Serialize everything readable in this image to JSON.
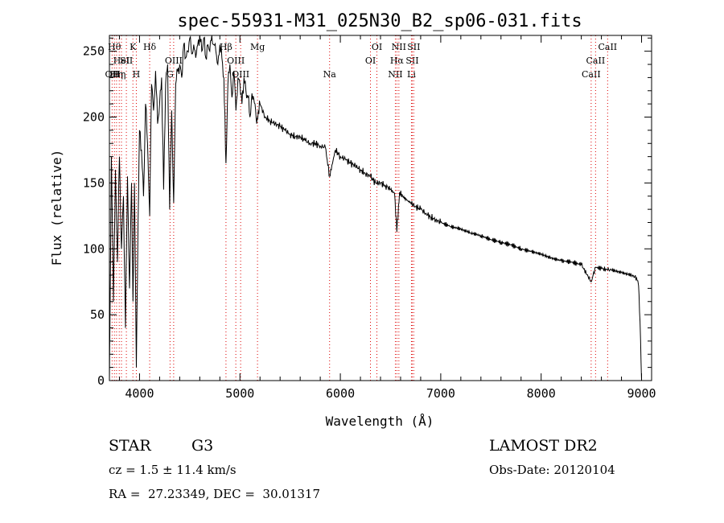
{
  "chart_data": {
    "type": "line",
    "title": "spec-55931-M31_025N30_B2_sp06-031.fits",
    "xlabel": "Wavelength (Å)",
    "ylabel": "Flux (relative)",
    "xlim": [
      3700,
      9100
    ],
    "ylim": [
      0,
      262
    ],
    "xticks": [
      4000,
      5000,
      6000,
      7000,
      8000,
      9000
    ],
    "yticks": [
      0,
      50,
      100,
      150,
      200,
      250
    ],
    "grid": false,
    "line_color": "#000000",
    "marker_color": "#dd0000",
    "series": [
      {
        "x": [
          3700,
          3720,
          3740,
          3760,
          3780,
          3800,
          3820,
          3840,
          3860,
          3880,
          3900,
          3920,
          3935,
          3950,
          3968,
          3985,
          4000,
          4020,
          4040,
          4060,
          4080,
          4101,
          4120,
          4140,
          4160,
          4180,
          4200,
          4220,
          4240,
          4260,
          4280,
          4300,
          4320,
          4340,
          4360,
          4380,
          4400,
          4420,
          4440,
          4460,
          4480,
          4500,
          4520,
          4540,
          4560,
          4580,
          4600,
          4620,
          4640,
          4660,
          4680,
          4700,
          4720,
          4740,
          4760,
          4780,
          4800,
          4820,
          4840,
          4861,
          4880,
          4900,
          4920,
          4940,
          4960,
          4980,
          5000,
          5020,
          5040,
          5060,
          5080,
          5100,
          5120,
          5150,
          5167,
          5183,
          5200,
          5250,
          5300,
          5350,
          5400,
          5450,
          5500,
          5550,
          5600,
          5650,
          5700,
          5750,
          5800,
          5850,
          5893,
          5950,
          6000,
          6050,
          6100,
          6150,
          6200,
          6250,
          6300,
          6350,
          6400,
          6450,
          6500,
          6540,
          6563,
          6590,
          6620,
          6660,
          6700,
          6750,
          6800,
          6850,
          6900,
          6950,
          7000,
          7100,
          7200,
          7300,
          7400,
          7500,
          7600,
          7700,
          7800,
          7900,
          8000,
          8100,
          8200,
          8300,
          8400,
          8498,
          8542,
          8600,
          8662,
          8700,
          8800,
          8900,
          8950,
          8970,
          8985,
          9000
        ],
        "y": [
          0,
          170,
          60,
          160,
          90,
          170,
          100,
          140,
          40,
          155,
          70,
          150,
          60,
          150,
          10,
          120,
          190,
          175,
          140,
          210,
          180,
          125,
          225,
          205,
          235,
          195,
          210,
          230,
          145,
          225,
          240,
          130,
          205,
          135,
          225,
          235,
          240,
          230,
          255,
          245,
          250,
          260,
          248,
          255,
          245,
          255,
          262,
          250,
          260,
          245,
          255,
          250,
          262,
          255,
          250,
          240,
          255,
          245,
          230,
          165,
          225,
          240,
          215,
          235,
          205,
          230,
          225,
          210,
          230,
          220,
          215,
          200,
          218,
          210,
          195,
          205,
          210,
          200,
          197,
          195,
          193,
          190,
          187,
          185,
          185,
          182,
          180,
          180,
          178,
          177,
          155,
          175,
          170,
          168,
          165,
          163,
          160,
          157,
          155,
          150,
          150,
          148,
          145,
          142,
          113,
          143,
          140,
          137,
          135,
          132,
          130,
          127,
          124,
          122,
          120,
          117,
          115,
          112,
          110,
          107,
          105,
          103,
          100,
          98,
          96,
          93,
          91,
          90,
          88,
          75,
          86,
          85,
          84,
          84,
          82,
          80,
          78,
          72,
          45,
          0
        ]
      }
    ],
    "line_markers": [
      {
        "x": 3727,
        "label": "OII",
        "row": 2
      },
      {
        "x": 3750,
        "label": "Hθ",
        "row": 0
      },
      {
        "x": 3771,
        "label": "Hη",
        "row": 2
      },
      {
        "x": 3798,
        "label": "Hη",
        "row": 2
      },
      {
        "x": 3820,
        "label": "HeI",
        "row": 1
      },
      {
        "x": 3869,
        "label": "SII",
        "row": 1
      },
      {
        "x": 3934,
        "label": "K",
        "row": 0
      },
      {
        "x": 3968,
        "label": "H",
        "row": 2
      },
      {
        "x": 4101,
        "label": "Hδ",
        "row": 0
      },
      {
        "x": 4304,
        "label": "G",
        "row": 2
      },
      {
        "x": 4340,
        "label": "OIII",
        "row": 1
      },
      {
        "x": 4861,
        "label": "Hβ",
        "row": 0
      },
      {
        "x": 4959,
        "label": "OIII",
        "row": 1
      },
      {
        "x": 5007,
        "label": "OIII",
        "row": 2
      },
      {
        "x": 5175,
        "label": "Mg",
        "row": 0
      },
      {
        "x": 5893,
        "label": "Na",
        "row": 2
      },
      {
        "x": 6300,
        "label": "OI",
        "row": 1
      },
      {
        "x": 6364,
        "label": "OI",
        "row": 0
      },
      {
        "x": 6548,
        "label": "NII",
        "row": 2
      },
      {
        "x": 6563,
        "label": "Hα",
        "row": 1
      },
      {
        "x": 6583,
        "label": "NII",
        "row": 0
      },
      {
        "x": 6716,
        "label": "SII",
        "row": 1
      },
      {
        "x": 6708,
        "label": "Li",
        "row": 2
      },
      {
        "x": 6731,
        "label": "SII",
        "row": 0
      },
      {
        "x": 8498,
        "label": "CaII",
        "row": 2
      },
      {
        "x": 8542,
        "label": "CaII",
        "row": 1
      },
      {
        "x": 8662,
        "label": "CaII",
        "row": 0
      }
    ]
  },
  "info": {
    "class_label": "STAR",
    "subclass": "G3",
    "survey": "LAMOST DR2",
    "cz": "cz = 1.5 ± 11.4 km/s",
    "obs_date": "Obs-Date: 20120104",
    "coords": "RA =  27.23349, DEC =  30.01317"
  }
}
